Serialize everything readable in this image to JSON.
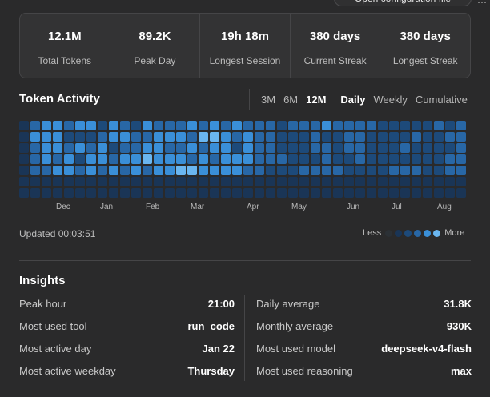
{
  "header": {
    "config_button": "Open configuration file"
  },
  "stats": [
    {
      "value": "12.1M",
      "label": "Total Tokens"
    },
    {
      "value": "89.2K",
      "label": "Peak Day"
    },
    {
      "value": "19h 18m",
      "label": "Longest Session"
    },
    {
      "value": "380 days",
      "label": "Current Streak"
    },
    {
      "value": "380 days",
      "label": "Longest Streak"
    }
  ],
  "activity": {
    "title": "Token Activity",
    "ranges": [
      "3M",
      "6M",
      "12M"
    ],
    "active_range": "12M",
    "views": [
      "Daily",
      "Weekly",
      "Cumulative"
    ],
    "active_view": "Daily",
    "months": [
      "Dec",
      "Jan",
      "Feb",
      "Mar",
      "Apr",
      "May",
      "Jun",
      "Jul",
      "Aug"
    ],
    "updated": "Updated 00:03:51",
    "legend_less": "Less",
    "legend_more": "More",
    "colors": [
      "#2b3035",
      "#1a3556",
      "#1d4a7a",
      "#2867a6",
      "#3a8fd8",
      "#6ab6f0"
    ],
    "levels": [
      [
        1,
        3,
        4,
        4,
        3,
        4,
        4,
        2,
        4,
        3,
        2,
        4,
        3,
        3,
        3,
        4,
        3,
        4,
        3,
        4,
        3,
        3,
        3,
        2,
        3,
        3,
        3,
        4,
        3,
        3,
        3,
        3,
        2,
        2,
        2,
        2,
        2,
        3,
        2,
        3
      ],
      [
        1,
        4,
        4,
        4,
        2,
        2,
        2,
        3,
        4,
        4,
        3,
        3,
        4,
        4,
        4,
        3,
        5,
        5,
        4,
        3,
        4,
        3,
        3,
        2,
        2,
        2,
        3,
        2,
        2,
        3,
        3,
        2,
        2,
        2,
        2,
        3,
        2,
        2,
        3,
        3
      ],
      [
        1,
        3,
        4,
        4,
        3,
        4,
        3,
        4,
        2,
        3,
        3,
        4,
        4,
        3,
        3,
        4,
        3,
        4,
        4,
        2,
        4,
        3,
        3,
        2,
        2,
        2,
        3,
        3,
        2,
        3,
        3,
        2,
        2,
        2,
        3,
        2,
        2,
        2,
        2,
        3
      ],
      [
        1,
        3,
        4,
        3,
        4,
        2,
        4,
        4,
        3,
        4,
        4,
        5,
        4,
        4,
        4,
        3,
        4,
        3,
        4,
        4,
        4,
        3,
        3,
        3,
        2,
        2,
        2,
        3,
        2,
        2,
        3,
        2,
        2,
        2,
        2,
        2,
        2,
        2,
        3,
        3
      ],
      [
        1,
        3,
        3,
        4,
        4,
        3,
        4,
        3,
        4,
        3,
        4,
        3,
        4,
        4,
        5,
        5,
        4,
        4,
        4,
        4,
        3,
        3,
        2,
        2,
        2,
        3,
        3,
        3,
        3,
        2,
        2,
        2,
        2,
        3,
        3,
        3,
        2,
        2,
        3,
        3
      ],
      [
        1,
        1,
        1,
        1,
        1,
        1,
        1,
        1,
        1,
        1,
        1,
        1,
        1,
        1,
        1,
        1,
        1,
        1,
        1,
        1,
        1,
        1,
        1,
        1,
        1,
        1,
        1,
        1,
        1,
        1,
        1,
        1,
        1,
        1,
        1,
        1,
        1,
        1,
        1,
        1
      ],
      [
        1,
        1,
        1,
        1,
        1,
        1,
        1,
        1,
        1,
        1,
        1,
        1,
        1,
        1,
        1,
        1,
        1,
        1,
        1,
        1,
        1,
        1,
        1,
        1,
        1,
        1,
        1,
        1,
        1,
        1,
        1,
        1,
        1,
        1,
        1,
        1,
        1,
        1,
        1,
        1
      ]
    ]
  },
  "insights": {
    "title": "Insights",
    "left": [
      {
        "label": "Peak hour",
        "value": "21:00"
      },
      {
        "label": "Most used tool",
        "value": "run_code"
      },
      {
        "label": "Most active day",
        "value": "Jan 22"
      },
      {
        "label": "Most active weekday",
        "value": "Thursday"
      }
    ],
    "right": [
      {
        "label": "Daily average",
        "value": "31.8K"
      },
      {
        "label": "Monthly average",
        "value": "930K"
      },
      {
        "label": "Most used model",
        "value": "deepseek-v4-flash"
      },
      {
        "label": "Most used reasoning",
        "value": "max"
      }
    ]
  }
}
